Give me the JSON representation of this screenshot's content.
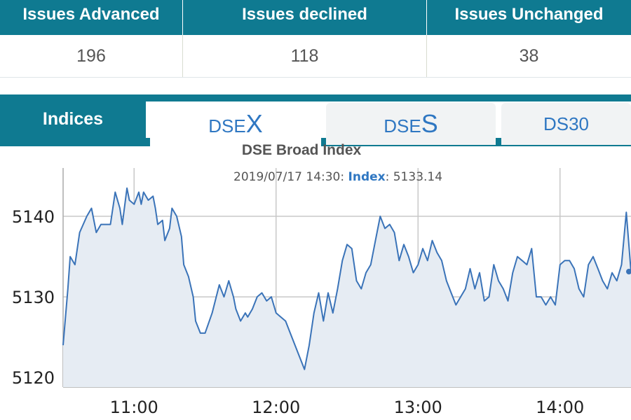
{
  "stats": {
    "headers": [
      "Issues Advanced",
      "Issues declined",
      "Issues Unchanged"
    ],
    "values": [
      "196",
      "118",
      "38"
    ]
  },
  "tabs": {
    "indices_label": "Indices",
    "dsex": {
      "prefix": "DSE",
      "suffix": "X"
    },
    "dses": {
      "prefix": "DSE",
      "suffix": "S"
    },
    "ds30": "DS30"
  },
  "colors": {
    "header_bg": "#0f7a91",
    "tab_text": "#2f77c2",
    "line": "#3a73b8",
    "area_fill": "#e6ecf3"
  },
  "chart_data": {
    "type": "area",
    "title": "DSE Broad Index",
    "subtitle": {
      "timestamp": "2019/07/17 14:30:",
      "series_label": "Index",
      "value": ": 5133.14"
    },
    "xlabel": "",
    "ylabel": "",
    "x_ticks": [
      "11:00",
      "12:00",
      "13:00",
      "14:00"
    ],
    "y_ticks": [
      5120,
      5130,
      5140
    ],
    "ylim": [
      5118.8,
      5146
    ],
    "xlim": [
      "10:30",
      "14:30"
    ],
    "grid": true,
    "series": [
      {
        "x": [
          "10:30",
          "10:32",
          "10:33",
          "10:35",
          "10:37",
          "10:40",
          "10:42",
          "10:44",
          "10:46",
          "10:48",
          "10:50",
          "10:52",
          "10:54",
          "10:55",
          "10:57",
          "10:58",
          "11:00",
          "11:02",
          "11:03",
          "11:04",
          "11:06",
          "11:08",
          "11:09",
          "11:10",
          "11:12",
          "11:13",
          "11:15",
          "11:16",
          "11:18",
          "11:20",
          "11:21",
          "11:23",
          "11:25",
          "11:26",
          "11:28",
          "11:30",
          "11:33",
          "11:36",
          "11:38",
          "11:40",
          "11:42",
          "11:43",
          "11:45",
          "11:47",
          "11:48",
          "11:50",
          "11:52",
          "11:54",
          "11:56",
          "11:58",
          "12:00",
          "12:02",
          "12:04",
          "12:06",
          "12:08",
          "12:10",
          "12:12",
          "12:14",
          "12:16",
          "12:18",
          "12:20",
          "12:22",
          "12:24",
          "12:26",
          "12:28",
          "12:30",
          "12:32",
          "12:34",
          "12:36",
          "12:38",
          "12:40",
          "12:42",
          "12:44",
          "12:46",
          "12:48",
          "12:50",
          "12:52",
          "12:54",
          "12:56",
          "12:58",
          "13:00",
          "13:02",
          "13:04",
          "13:06",
          "13:08",
          "13:10",
          "13:12",
          "13:14",
          "13:16",
          "13:18",
          "13:20",
          "13:22",
          "13:24",
          "13:26",
          "13:28",
          "13:30",
          "13:32",
          "13:34",
          "13:36",
          "13:38",
          "13:40",
          "13:42",
          "13:44",
          "13:46",
          "13:48",
          "13:50",
          "13:52",
          "13:54",
          "13:56",
          "13:58",
          "14:00",
          "14:02",
          "14:04",
          "14:06",
          "14:08",
          "14:10",
          "14:12",
          "14:14",
          "14:16",
          "14:18",
          "14:20",
          "14:22",
          "14:24",
          "14:26",
          "14:28",
          "14:30"
        ],
        "values": [
          5124,
          5131,
          5135,
          5134,
          5138,
          5140,
          5141,
          5138,
          5139,
          5139,
          5139,
          5143,
          5141,
          5139,
          5143.5,
          5142,
          5141.5,
          5143,
          5141.5,
          5143,
          5142,
          5142.5,
          5141,
          5139,
          5139.5,
          5137,
          5138.5,
          5141,
          5140,
          5137.5,
          5134,
          5132.5,
          5130,
          5127,
          5125.5,
          5125.5,
          5128,
          5131.5,
          5130,
          5132,
          5130,
          5128.5,
          5127,
          5128,
          5127.5,
          5128.5,
          5130,
          5130.5,
          5129.5,
          5130,
          5128,
          5127.5,
          5127,
          5125.5,
          5124,
          5122.5,
          5121,
          5124,
          5128,
          5130.5,
          5127,
          5130.5,
          5128,
          5131,
          5134.5,
          5136.5,
          5136,
          5132,
          5131,
          5133,
          5134,
          5137,
          5140,
          5138.5,
          5139,
          5138,
          5134.5,
          5136.5,
          5135,
          5133,
          5134,
          5136,
          5134.5,
          5137,
          5135.5,
          5134.5,
          5132,
          5130.5,
          5129,
          5130,
          5131,
          5133.5,
          5131,
          5133,
          5129.5,
          5130,
          5134,
          5132,
          5131,
          5129.5,
          5133,
          5135,
          5134.5,
          5134,
          5136,
          5130,
          5130,
          5129,
          5130,
          5129,
          5134,
          5134.5,
          5134.5,
          5133.5,
          5131,
          5130,
          5134,
          5135,
          5133.5,
          5132,
          5131,
          5133,
          5132,
          5134,
          5140.5,
          5133.14
        ]
      }
    ]
  }
}
